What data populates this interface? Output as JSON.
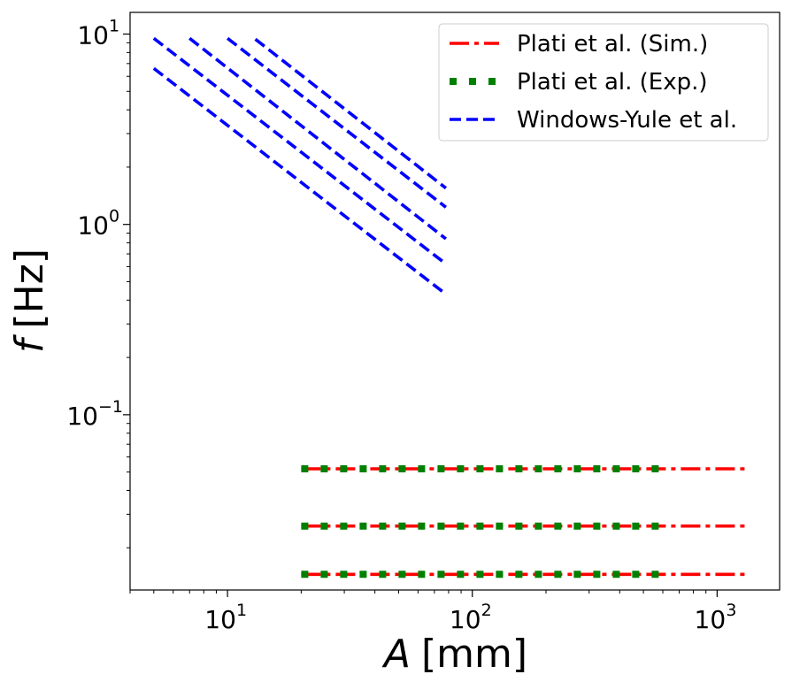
{
  "chart_data": {
    "type": "line",
    "xscale": "log",
    "yscale": "log",
    "xlim": [
      4.0,
      1800
    ],
    "ylim": [
      0.012,
      13
    ],
    "xlabel": {
      "var": "A",
      "unit": "[mm]"
    },
    "ylabel": {
      "var": "f",
      "unit": "[Hz]"
    },
    "xticks": [
      {
        "value": 10,
        "base": "10",
        "exp": "1"
      },
      {
        "value": 100,
        "base": "10",
        "exp": "2"
      },
      {
        "value": 1000,
        "base": "10",
        "exp": "3"
      }
    ],
    "yticks": [
      {
        "value": 10,
        "base": "10",
        "exp": "1"
      },
      {
        "value": 1,
        "base": "10",
        "exp": "0"
      },
      {
        "value": 0.1,
        "base": "10",
        "exp": "−1"
      }
    ],
    "grid": false,
    "legend_position": "top-right",
    "series": [
      {
        "name": "Plati et al. (Sim.)",
        "color": "#ff0000",
        "style": "dashdot",
        "lines": [
          {
            "x": [
              20,
              1300
            ],
            "y": [
              0.052,
              0.052
            ]
          },
          {
            "x": [
              20,
              1300
            ],
            "y": [
              0.026,
              0.026
            ]
          },
          {
            "x": [
              20,
              1300
            ],
            "y": [
              0.0145,
              0.0145
            ]
          }
        ]
      },
      {
        "name": "Plati et al. (Exp.)",
        "color": "#008000",
        "style": "dotted",
        "lines": [
          {
            "x": [
              20,
              580
            ],
            "y": [
              0.052,
              0.052
            ]
          },
          {
            "x": [
              20,
              580
            ],
            "y": [
              0.026,
              0.026
            ]
          },
          {
            "x": [
              20,
              580
            ],
            "y": [
              0.0145,
              0.0145
            ]
          }
        ]
      },
      {
        "name": "Windows-Yule et al.",
        "color": "#0000ff",
        "style": "dashed",
        "lines": [
          {
            "x": [
              5.0,
              78
            ],
            "y": [
              6.6,
              0.43
            ]
          },
          {
            "x": [
              5.0,
              78
            ],
            "y": [
              9.5,
              0.62
            ]
          },
          {
            "x": [
              7.0,
              78
            ],
            "y": [
              9.5,
              0.84
            ]
          },
          {
            "x": [
              10.0,
              78
            ],
            "y": [
              9.5,
              1.23
            ]
          },
          {
            "x": [
              13.0,
              78
            ],
            "y": [
              9.4,
              1.55
            ]
          }
        ]
      }
    ]
  }
}
